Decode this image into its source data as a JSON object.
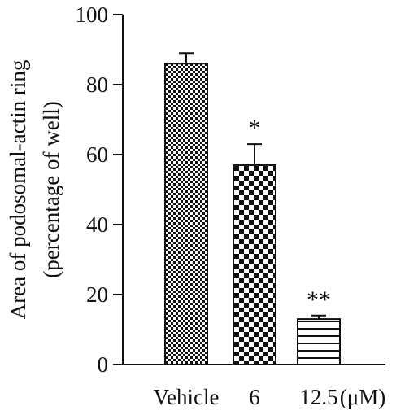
{
  "chart_data": {
    "type": "bar",
    "categories": [
      "Vehicle",
      "6",
      "12.5"
    ],
    "unit_label": "(μM)",
    "values": [
      86,
      57,
      13
    ],
    "error_upper": [
      89,
      63,
      14
    ],
    "significance": [
      "",
      "*",
      "**"
    ],
    "ylabel_line1": "Area of podosomal-actin ring",
    "ylabel_line2": "(percentage of well)",
    "ylim": [
      0,
      100
    ],
    "yticks": [
      0,
      20,
      40,
      60,
      80,
      100
    ],
    "ytick_labels": [
      "0",
      "20",
      "40",
      "60",
      "80",
      "100"
    ],
    "fill_patterns": [
      "fine-checker",
      "coarse-checker",
      "horizontal-lines"
    ],
    "colors": {
      "ink": "#111111",
      "background": "#ffffff"
    }
  }
}
